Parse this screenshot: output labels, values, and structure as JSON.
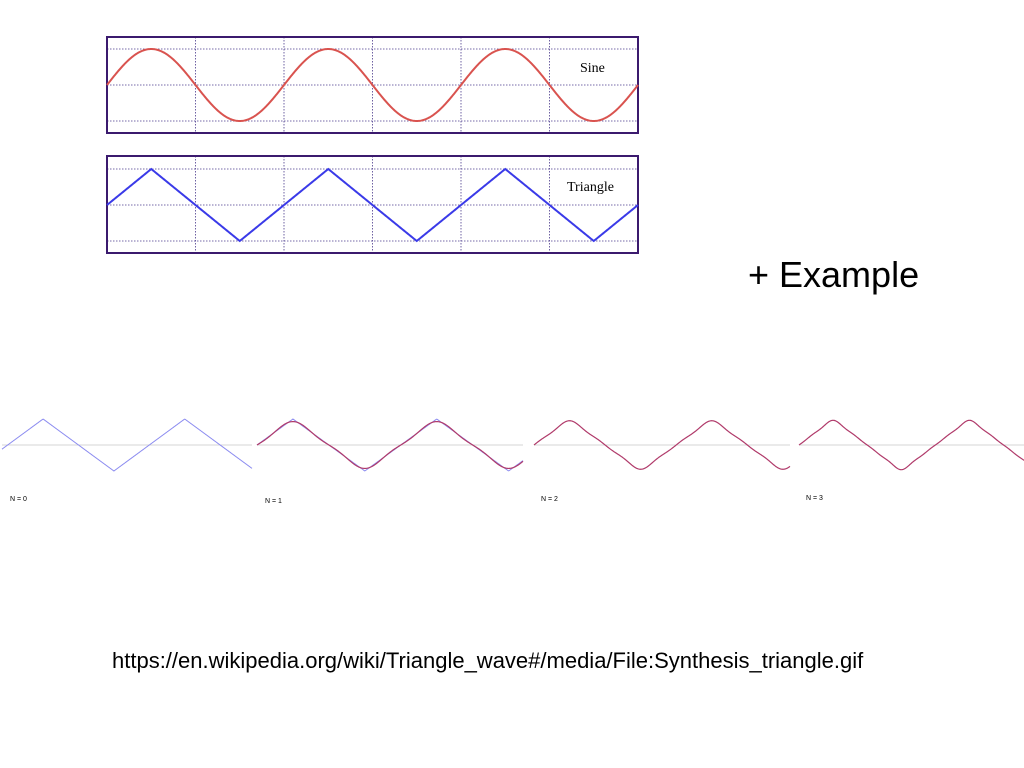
{
  "slide": {
    "heading": "+ Example",
    "source_url": "https://en.wikipedia.org/wiki/Triangle_wave#/media/File:Synthesis_triangle.gif"
  },
  "colors": {
    "frame": "#3b1a6e",
    "grid": "#4a3a8c",
    "sine": "#d9534f",
    "triangle": "#3a3ae8",
    "target_triangle": "#8c8cf0",
    "synthesis": "#b03a6a",
    "zero_line": "#d6d6d6"
  },
  "chart_data": [
    {
      "type": "line",
      "title": "",
      "label": "Sine",
      "xlim": [
        0,
        6
      ],
      "ylim": [
        -1,
        1
      ],
      "grid": true,
      "series": [
        {
          "name": "Sine",
          "function": "sine",
          "cycles": 3,
          "x0": 0,
          "x1": 6,
          "amplitude": 1
        }
      ]
    },
    {
      "type": "line",
      "title": "",
      "label": "Triangle",
      "xlim": [
        0,
        6
      ],
      "ylim": [
        -1,
        1
      ],
      "grid": true,
      "series": [
        {
          "name": "Triangle",
          "function": "triangle",
          "cycles": 3,
          "x0": 0,
          "x1": 6,
          "amplitude": 1
        }
      ]
    },
    {
      "type": "line",
      "title": "",
      "label": "N = 0",
      "harmonics": 0,
      "series": [
        {
          "function": "triangle_target",
          "x0": -0.08,
          "x1": 3.45,
          "amplitude": 1
        }
      ]
    },
    {
      "type": "line",
      "title": "",
      "label": "N = 1",
      "harmonics": 1,
      "series": [
        {
          "function": "triangle_target",
          "x0": 0,
          "x1": 3.7,
          "amplitude": 1
        },
        {
          "function": "fourier_partial",
          "x0": 0,
          "x1": 3.7,
          "amplitude": 1
        }
      ]
    },
    {
      "type": "line",
      "title": "",
      "label": "N = 2",
      "harmonics": 2,
      "series": [
        {
          "function": "fourier_partial",
          "x0": 0,
          "x1": 3.6,
          "amplitude": 1
        }
      ]
    },
    {
      "type": "line",
      "title": "",
      "label": "N = 3",
      "harmonics": 3,
      "series": [
        {
          "function": "fourier_partial",
          "x0": 0,
          "x1": 3.3,
          "amplitude": 1
        }
      ]
    }
  ]
}
